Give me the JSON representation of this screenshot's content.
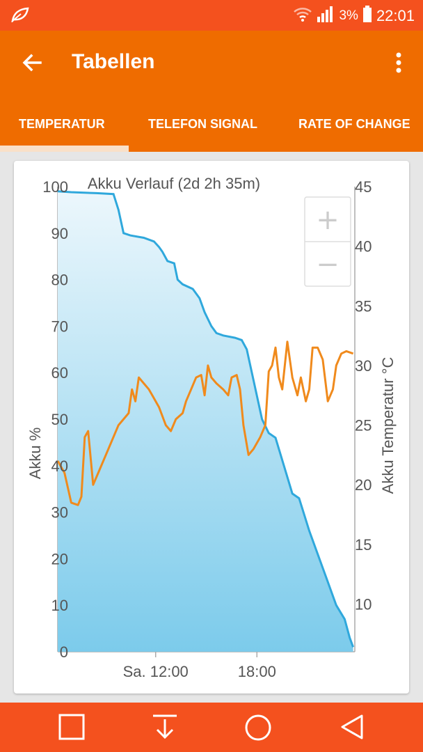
{
  "status_bar": {
    "signal_percent": "3%",
    "time": "22:01",
    "icons": [
      "app-leaf-icon",
      "wifi-icon",
      "cell-signal-icon",
      "battery-icon"
    ]
  },
  "app_bar": {
    "title": "Tabellen",
    "back_icon": "arrow-back-icon",
    "menu_icon": "more-vert-icon"
  },
  "tabs": [
    {
      "label": "TEMPERATUR",
      "selected": true
    },
    {
      "label": "TELEFON SIGNAL",
      "selected": false
    },
    {
      "label": "RATE OF CHANGE",
      "selected": false
    }
  ],
  "zoom": {
    "plus": "+",
    "minus": "−"
  },
  "nav_bar": {
    "icons": [
      "recents-square-icon",
      "download-arrow-icon",
      "home-circle-icon",
      "back-triangle-icon"
    ]
  },
  "colors": {
    "accent": "#ef6c00",
    "status": "#f4511e",
    "battery_line": "#2fa8dc",
    "temp_line": "#f08a1c"
  },
  "chart_data": {
    "type": "line",
    "title": "Akku Verlauf (2d 2h 35m)",
    "xlabel": "",
    "ylabel": "Akku %",
    "y2label": "Akku Temperatur °C",
    "ylim": [
      0,
      100
    ],
    "y2lim": [
      6,
      45
    ],
    "y_ticks": [
      "100",
      "90",
      "80",
      "70",
      "60",
      "50",
      "40",
      "30",
      "20",
      "10",
      "0"
    ],
    "y2_ticks": [
      "45",
      "40",
      "35",
      "30",
      "25",
      "20",
      "15",
      "10"
    ],
    "x_ticks": [
      {
        "label": "Sa. 12:00",
        "hour": 12
      },
      {
        "label": "18:00",
        "hour": 18
      }
    ],
    "xlim_hours": [
      6.2,
      23.8
    ],
    "series": [
      {
        "axis": "left",
        "fill": true,
        "points": [
          [
            6.2,
            99
          ],
          [
            7,
            98.8
          ],
          [
            8.5,
            98.6
          ],
          [
            9.5,
            98.4
          ],
          [
            9.8,
            95
          ],
          [
            10.1,
            90
          ],
          [
            10.5,
            89.5
          ],
          [
            11.3,
            89
          ],
          [
            11.9,
            88.2
          ],
          [
            12.2,
            87
          ],
          [
            12.4,
            86
          ],
          [
            12.7,
            84
          ],
          [
            13.1,
            83.5
          ],
          [
            13.3,
            80
          ],
          [
            13.6,
            79
          ],
          [
            14.2,
            78
          ],
          [
            14.6,
            76
          ],
          [
            14.9,
            73
          ],
          [
            15.3,
            70
          ],
          [
            15.6,
            68.5
          ],
          [
            16,
            68
          ],
          [
            16.7,
            67.5
          ],
          [
            17.1,
            67
          ],
          [
            17.4,
            65
          ],
          [
            17.7,
            60
          ],
          [
            18,
            55
          ],
          [
            18.3,
            50
          ],
          [
            18.7,
            47
          ],
          [
            19.1,
            46
          ],
          [
            19.6,
            40
          ],
          [
            20.1,
            34
          ],
          [
            20.5,
            33
          ],
          [
            21.1,
            26
          ],
          [
            21.5,
            22
          ],
          [
            22.1,
            16
          ],
          [
            22.7,
            10
          ],
          [
            23.2,
            7
          ],
          [
            23.5,
            3
          ],
          [
            23.7,
            1
          ]
        ]
      },
      {
        "axis": "right",
        "fill": false,
        "points": [
          [
            6.2,
            22
          ],
          [
            6.6,
            21
          ],
          [
            7,
            18.5
          ],
          [
            7.4,
            18.3
          ],
          [
            7.6,
            19
          ],
          [
            7.8,
            24
          ],
          [
            8,
            24.5
          ],
          [
            8.3,
            20
          ],
          [
            8.6,
            21
          ],
          [
            9.2,
            23
          ],
          [
            9.8,
            25
          ],
          [
            10.4,
            26
          ],
          [
            10.6,
            28
          ],
          [
            10.8,
            27
          ],
          [
            11,
            29
          ],
          [
            11.3,
            28.5
          ],
          [
            11.6,
            28
          ],
          [
            11.8,
            27.5
          ],
          [
            12.2,
            26.5
          ],
          [
            12.6,
            25
          ],
          [
            12.9,
            24.5
          ],
          [
            13.2,
            25.5
          ],
          [
            13.6,
            26
          ],
          [
            13.8,
            27
          ],
          [
            14.1,
            28
          ],
          [
            14.4,
            29
          ],
          [
            14.7,
            29.2
          ],
          [
            14.9,
            27.5
          ],
          [
            15.1,
            30
          ],
          [
            15.3,
            29
          ],
          [
            15.6,
            28.5
          ],
          [
            16,
            28
          ],
          [
            16.3,
            27.5
          ],
          [
            16.5,
            29
          ],
          [
            16.8,
            29.2
          ],
          [
            17,
            28
          ],
          [
            17.2,
            25
          ],
          [
            17.5,
            22.5
          ],
          [
            17.8,
            23
          ],
          [
            18.2,
            24
          ],
          [
            18.5,
            25
          ],
          [
            18.7,
            29.5
          ],
          [
            18.9,
            30
          ],
          [
            19.1,
            31.5
          ],
          [
            19.3,
            29
          ],
          [
            19.5,
            28
          ],
          [
            19.8,
            32
          ],
          [
            20.1,
            29
          ],
          [
            20.4,
            27.5
          ],
          [
            20.6,
            29
          ],
          [
            20.9,
            27
          ],
          [
            21.1,
            28
          ],
          [
            21.3,
            31.5
          ],
          [
            21.6,
            31.5
          ],
          [
            21.9,
            30.5
          ],
          [
            22.2,
            27
          ],
          [
            22.5,
            28
          ],
          [
            22.7,
            30
          ],
          [
            23,
            31
          ],
          [
            23.3,
            31.2
          ],
          [
            23.7,
            31
          ]
        ]
      }
    ]
  }
}
